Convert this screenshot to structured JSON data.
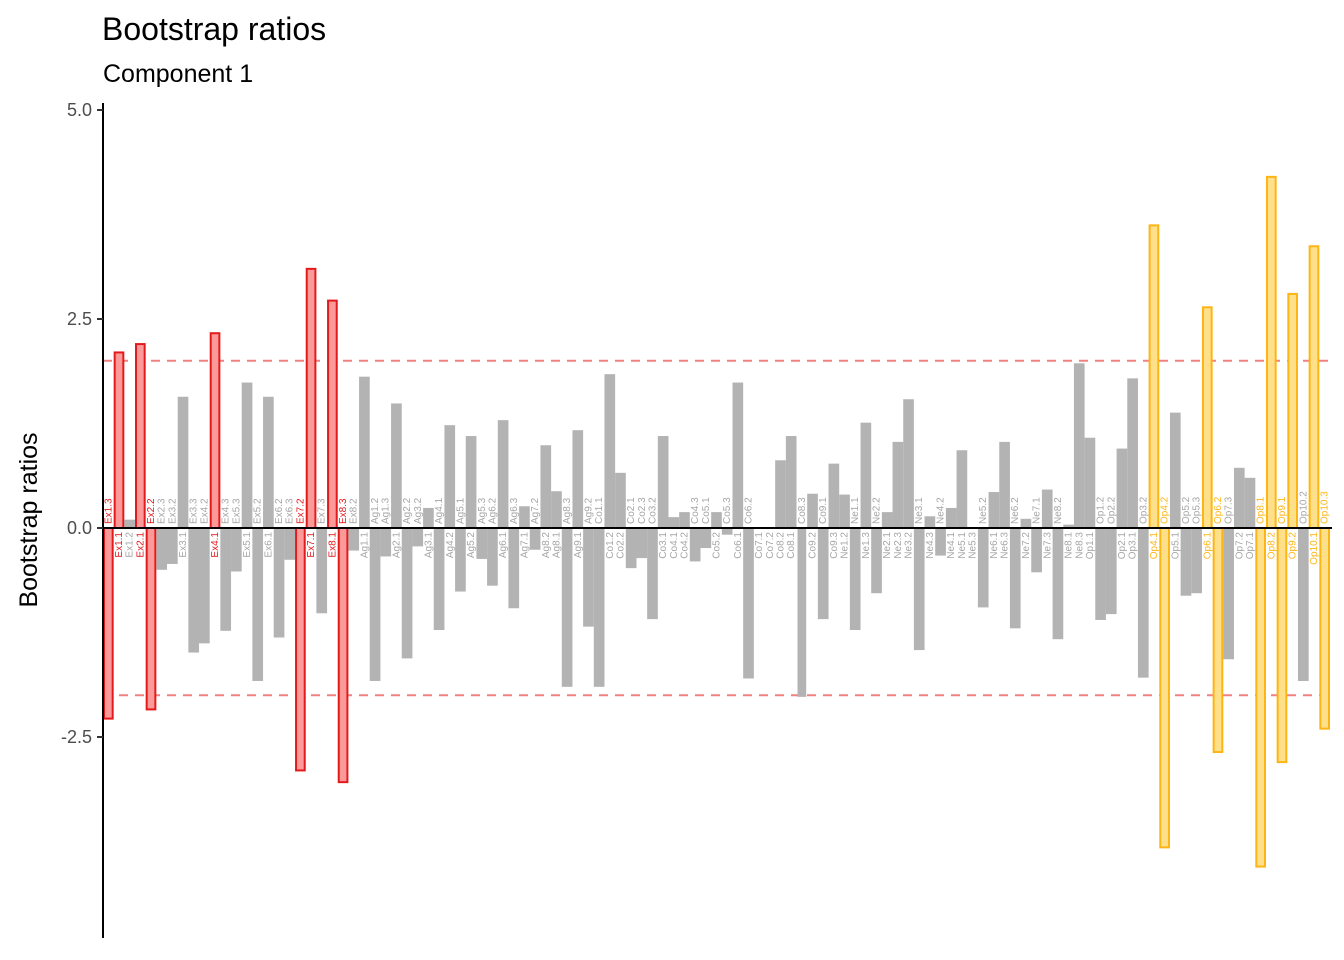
{
  "chart_data": {
    "type": "bar",
    "title": "Bootstrap ratios",
    "subtitle": "Component 1",
    "xlabel": "",
    "ylabel": "Bootstrap ratios",
    "ylim": [
      -4.9,
      5.0
    ],
    "yticks": [
      -2.5,
      0.0,
      2.5,
      5.0
    ],
    "ytick_labels": [
      "-2.5",
      "0.0",
      "2.5",
      "5.0"
    ],
    "threshold": 2,
    "grid": false,
    "colors": {
      "significant_Ex_stroke": "#e31a1c",
      "significant_Ex_fill": "#fb9a99",
      "significant_Op_stroke": "#fdb515",
      "significant_Op_fill": "#fee08b",
      "nonsignificant": "#b3b3b3",
      "threshold_line": "#f28080",
      "axis": "#000000"
    },
    "categories": [
      "Ex1.3",
      "Ex1.1",
      "Ex1.2",
      "Ex2.1",
      "Ex2.2",
      "Ex2.3",
      "Ex3.2",
      "Ex3.1",
      "Ex3.3",
      "Ex4.2",
      "Ex4.1",
      "Ex4.3",
      "Ex5.3",
      "Ex5.1",
      "Ex5.2",
      "Ex6.1",
      "Ex6.2",
      "Ex6.3",
      "Ex7.2",
      "Ex7.1",
      "Ex7.3",
      "Ex8.1",
      "Ex8.3",
      "Ex8.2",
      "Ag1.1",
      "Ag1.2",
      "Ag1.3",
      "Ag2.1",
      "Ag2.2",
      "Ag3.2",
      "Ag3.1",
      "Ag4.1",
      "Ag4.2",
      "Ag5.1",
      "Ag5.2",
      "Ag5.3",
      "Ag6.2",
      "Ag6.1",
      "Ag6.3",
      "Ag7.1",
      "Ag7.2",
      "Ag8.2",
      "Ag8.1",
      "Ag8.3",
      "Ag9.1",
      "Ag9.2",
      "Co1.1",
      "Co1.2",
      "Co2.2",
      "Co2.1",
      "Co2.3",
      "Co3.2",
      "Co3.1",
      "Co4.1",
      "Co4.2",
      "Co4.3",
      "Co5.1",
      "Co5.2",
      "Co5.3",
      "Co6.1",
      "Co6.2",
      "Co7.1",
      "Co7.2",
      "Co8.2",
      "Co8.1",
      "Co8.3",
      "Co9.2",
      "Co9.1",
      "Co9.3",
      "Ne1.2",
      "Ne1.1",
      "Ne1.3",
      "Ne2.2",
      "Ne2.1",
      "Ne2.3",
      "Ne3.2",
      "Ne3.1",
      "Ne4.3",
      "Ne4.2",
      "Ne4.1",
      "Ne5.1",
      "Ne5.3",
      "Ne5.2",
      "Ne6.1",
      "Ne6.3",
      "Ne6.2",
      "Ne7.2",
      "Ne7.1",
      "Ne7.3",
      "Ne8.2",
      "Ne8.1",
      "Ne8.3",
      "Op1.1",
      "Op1.2",
      "Op2.2",
      "Op2.1",
      "Op3.1",
      "Op3.2",
      "Op4.1",
      "Op4.2",
      "Op5.1",
      "Op5.2",
      "Op5.3",
      "Op6.1",
      "Op6.2",
      "Op7.3",
      "Op7.2",
      "Op7.1",
      "Op8.1",
      "Op8.2",
      "Op9.1",
      "Op9.2",
      "Op10.2",
      "Op10.1",
      "Op10.3"
    ],
    "values": [
      -2.28,
      2.1,
      0.1,
      2.2,
      -2.17,
      -0.5,
      -0.43,
      1.57,
      -1.49,
      -1.38,
      2.33,
      -1.23,
      -0.52,
      1.74,
      -1.83,
      1.57,
      -1.31,
      -0.38,
      -2.9,
      3.1,
      -1.02,
      2.72,
      -3.04,
      -0.27,
      1.81,
      -1.83,
      -0.34,
      1.49,
      -1.56,
      -0.22,
      0.24,
      -1.22,
      1.23,
      -0.76,
      1.1,
      -0.37,
      -0.69,
      1.29,
      -0.96,
      0.26,
      -0.26,
      0.99,
      0.44,
      -1.9,
      1.17,
      -1.18,
      -1.9,
      1.84,
      0.66,
      -0.48,
      -0.36,
      -1.09,
      1.1,
      0.13,
      0.19,
      -0.4,
      -0.24,
      0.19,
      -0.08,
      1.74,
      -1.8,
      0.0,
      0.0,
      0.81,
      1.1,
      -2.02,
      0.41,
      -1.09,
      0.77,
      0.4,
      -1.22,
      1.26,
      -0.78,
      0.19,
      1.03,
      1.54,
      -1.46,
      0.14,
      -0.33,
      0.24,
      0.93,
      0.0,
      -0.95,
      0.43,
      1.03,
      -1.2,
      0.11,
      -0.53,
      0.46,
      -1.33,
      0.04,
      1.97,
      1.08,
      -1.1,
      -1.03,
      0.95,
      1.79,
      -1.79,
      3.62,
      -3.82,
      1.38,
      -0.81,
      -0.78,
      2.64,
      -2.68,
      -1.57,
      0.72,
      0.6,
      -4.05,
      4.2,
      -2.8,
      2.8,
      -1.83,
      3.37,
      -2.4
    ]
  }
}
